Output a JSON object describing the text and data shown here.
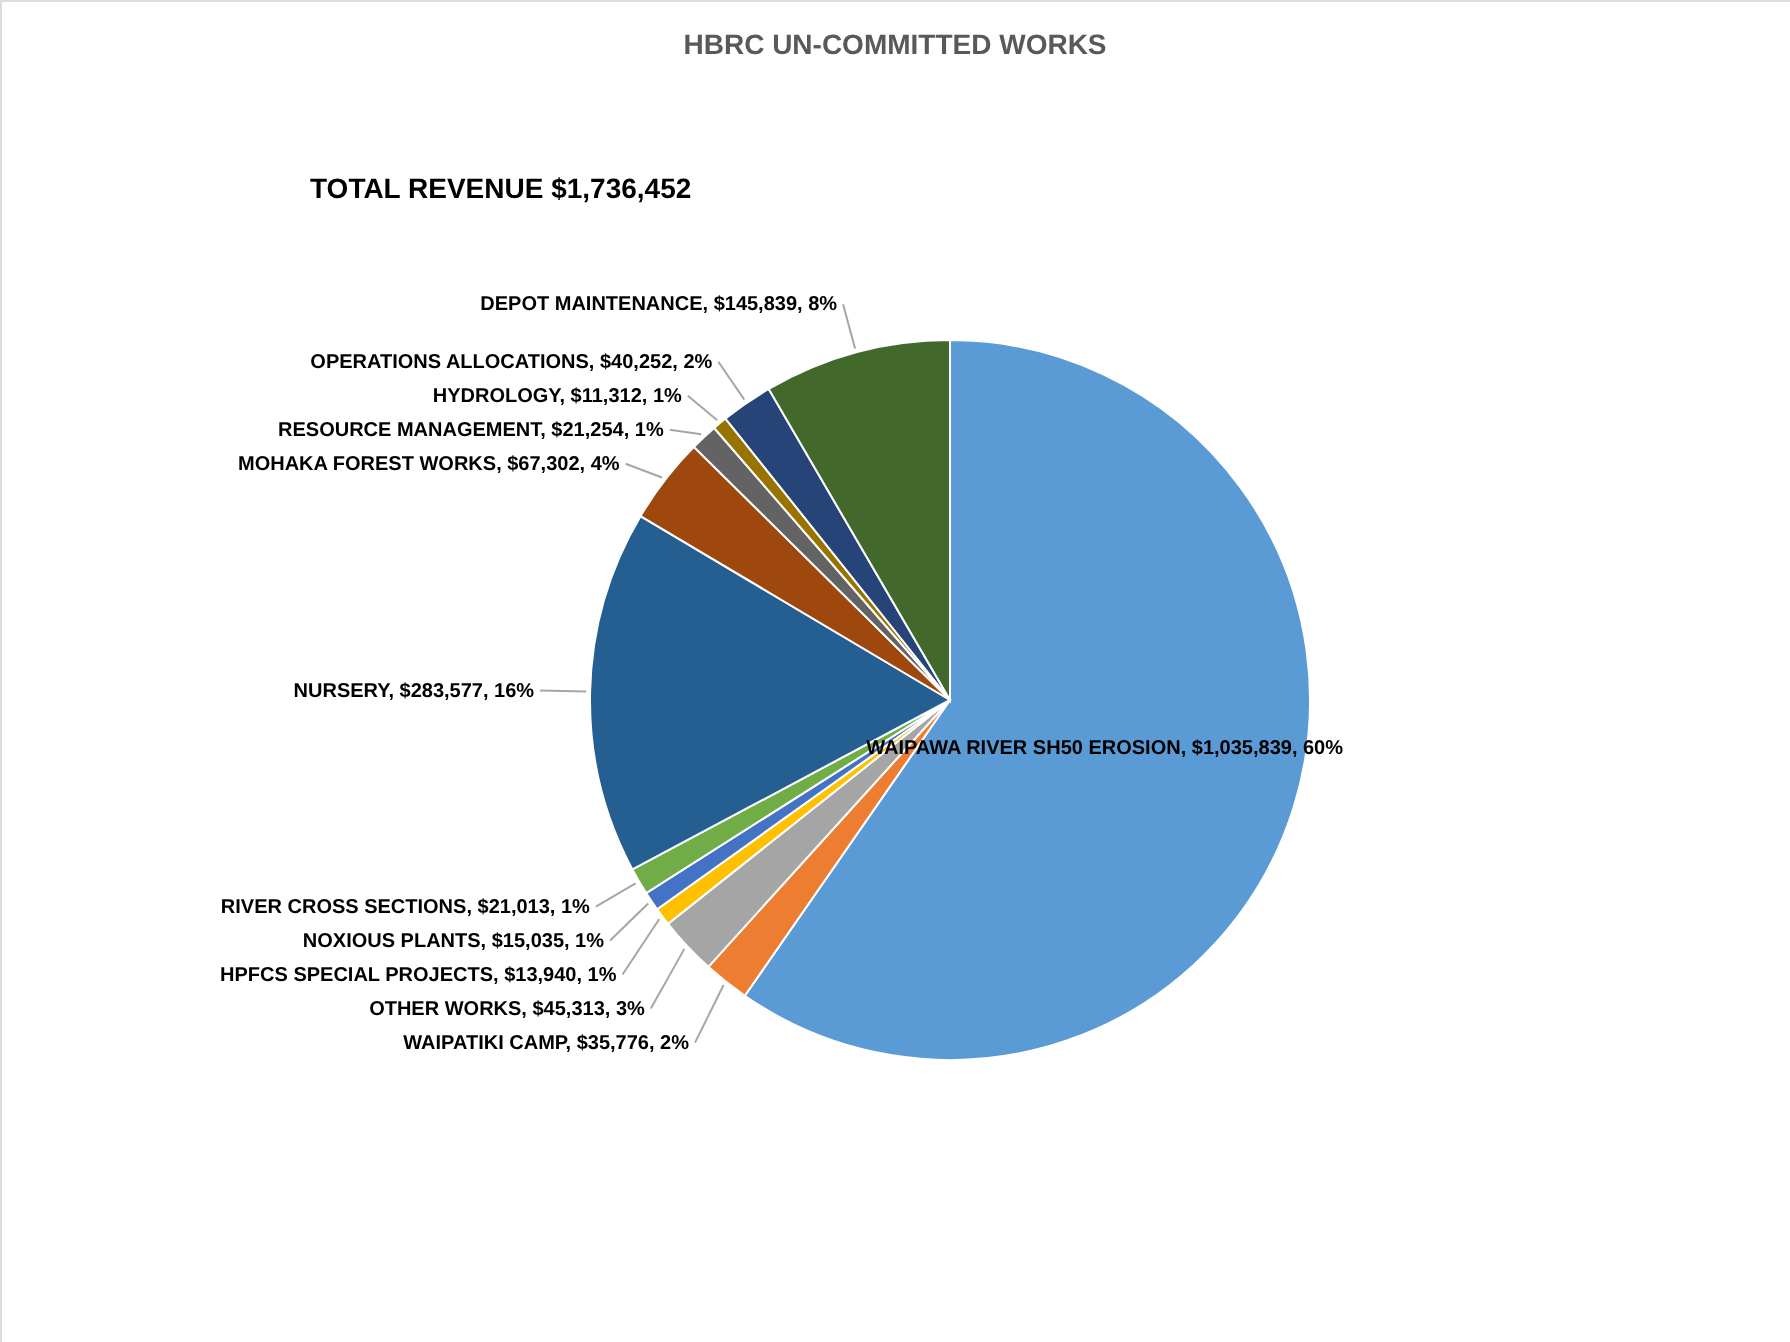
{
  "chart_data": {
    "type": "pie",
    "title": "HBRC UN-COMMITTED WORKS",
    "annotations": [
      "TOTAL REVENUE $1,736,452"
    ],
    "categories": [
      "WAIPAWA RIVER SH50 EROSION",
      "WAIPATIKI CAMP",
      "OTHER WORKS",
      "HPFCS SPECIAL PROJECTS",
      "NOXIOUS PLANTS",
      "RIVER CROSS SECTIONS",
      "NURSERY",
      "MOHAKA FOREST WORKS",
      "RESOURCE MANAGEMENT",
      "HYDROLOGY",
      "OPERATIONS ALLOCATIONS",
      "DEPOT MAINTENANCE"
    ],
    "values": [
      1035839,
      35776,
      45313,
      13940,
      15035,
      21013,
      283577,
      67302,
      21254,
      11312,
      40252,
      145839
    ],
    "colors": [
      "#5b9bd5",
      "#ed7d31",
      "#a5a5a5",
      "#ffc000",
      "#4472c4",
      "#70ad47",
      "#255e91",
      "#9e480e",
      "#636363",
      "#997300",
      "#264478",
      "#43682b"
    ],
    "value_labels": [
      "$1,035,839, 60%",
      "$35,776, 2%",
      "$45,313, 3%",
      "$13,940, 1%",
      "$15,035, 1%",
      "$21,013, 1%",
      "$283,577, 16%",
      "$67,302, 4%",
      "$21,254, 1%",
      "$11,312, 1%",
      "$40,252, 2%",
      "$145,839, 8%"
    ]
  }
}
